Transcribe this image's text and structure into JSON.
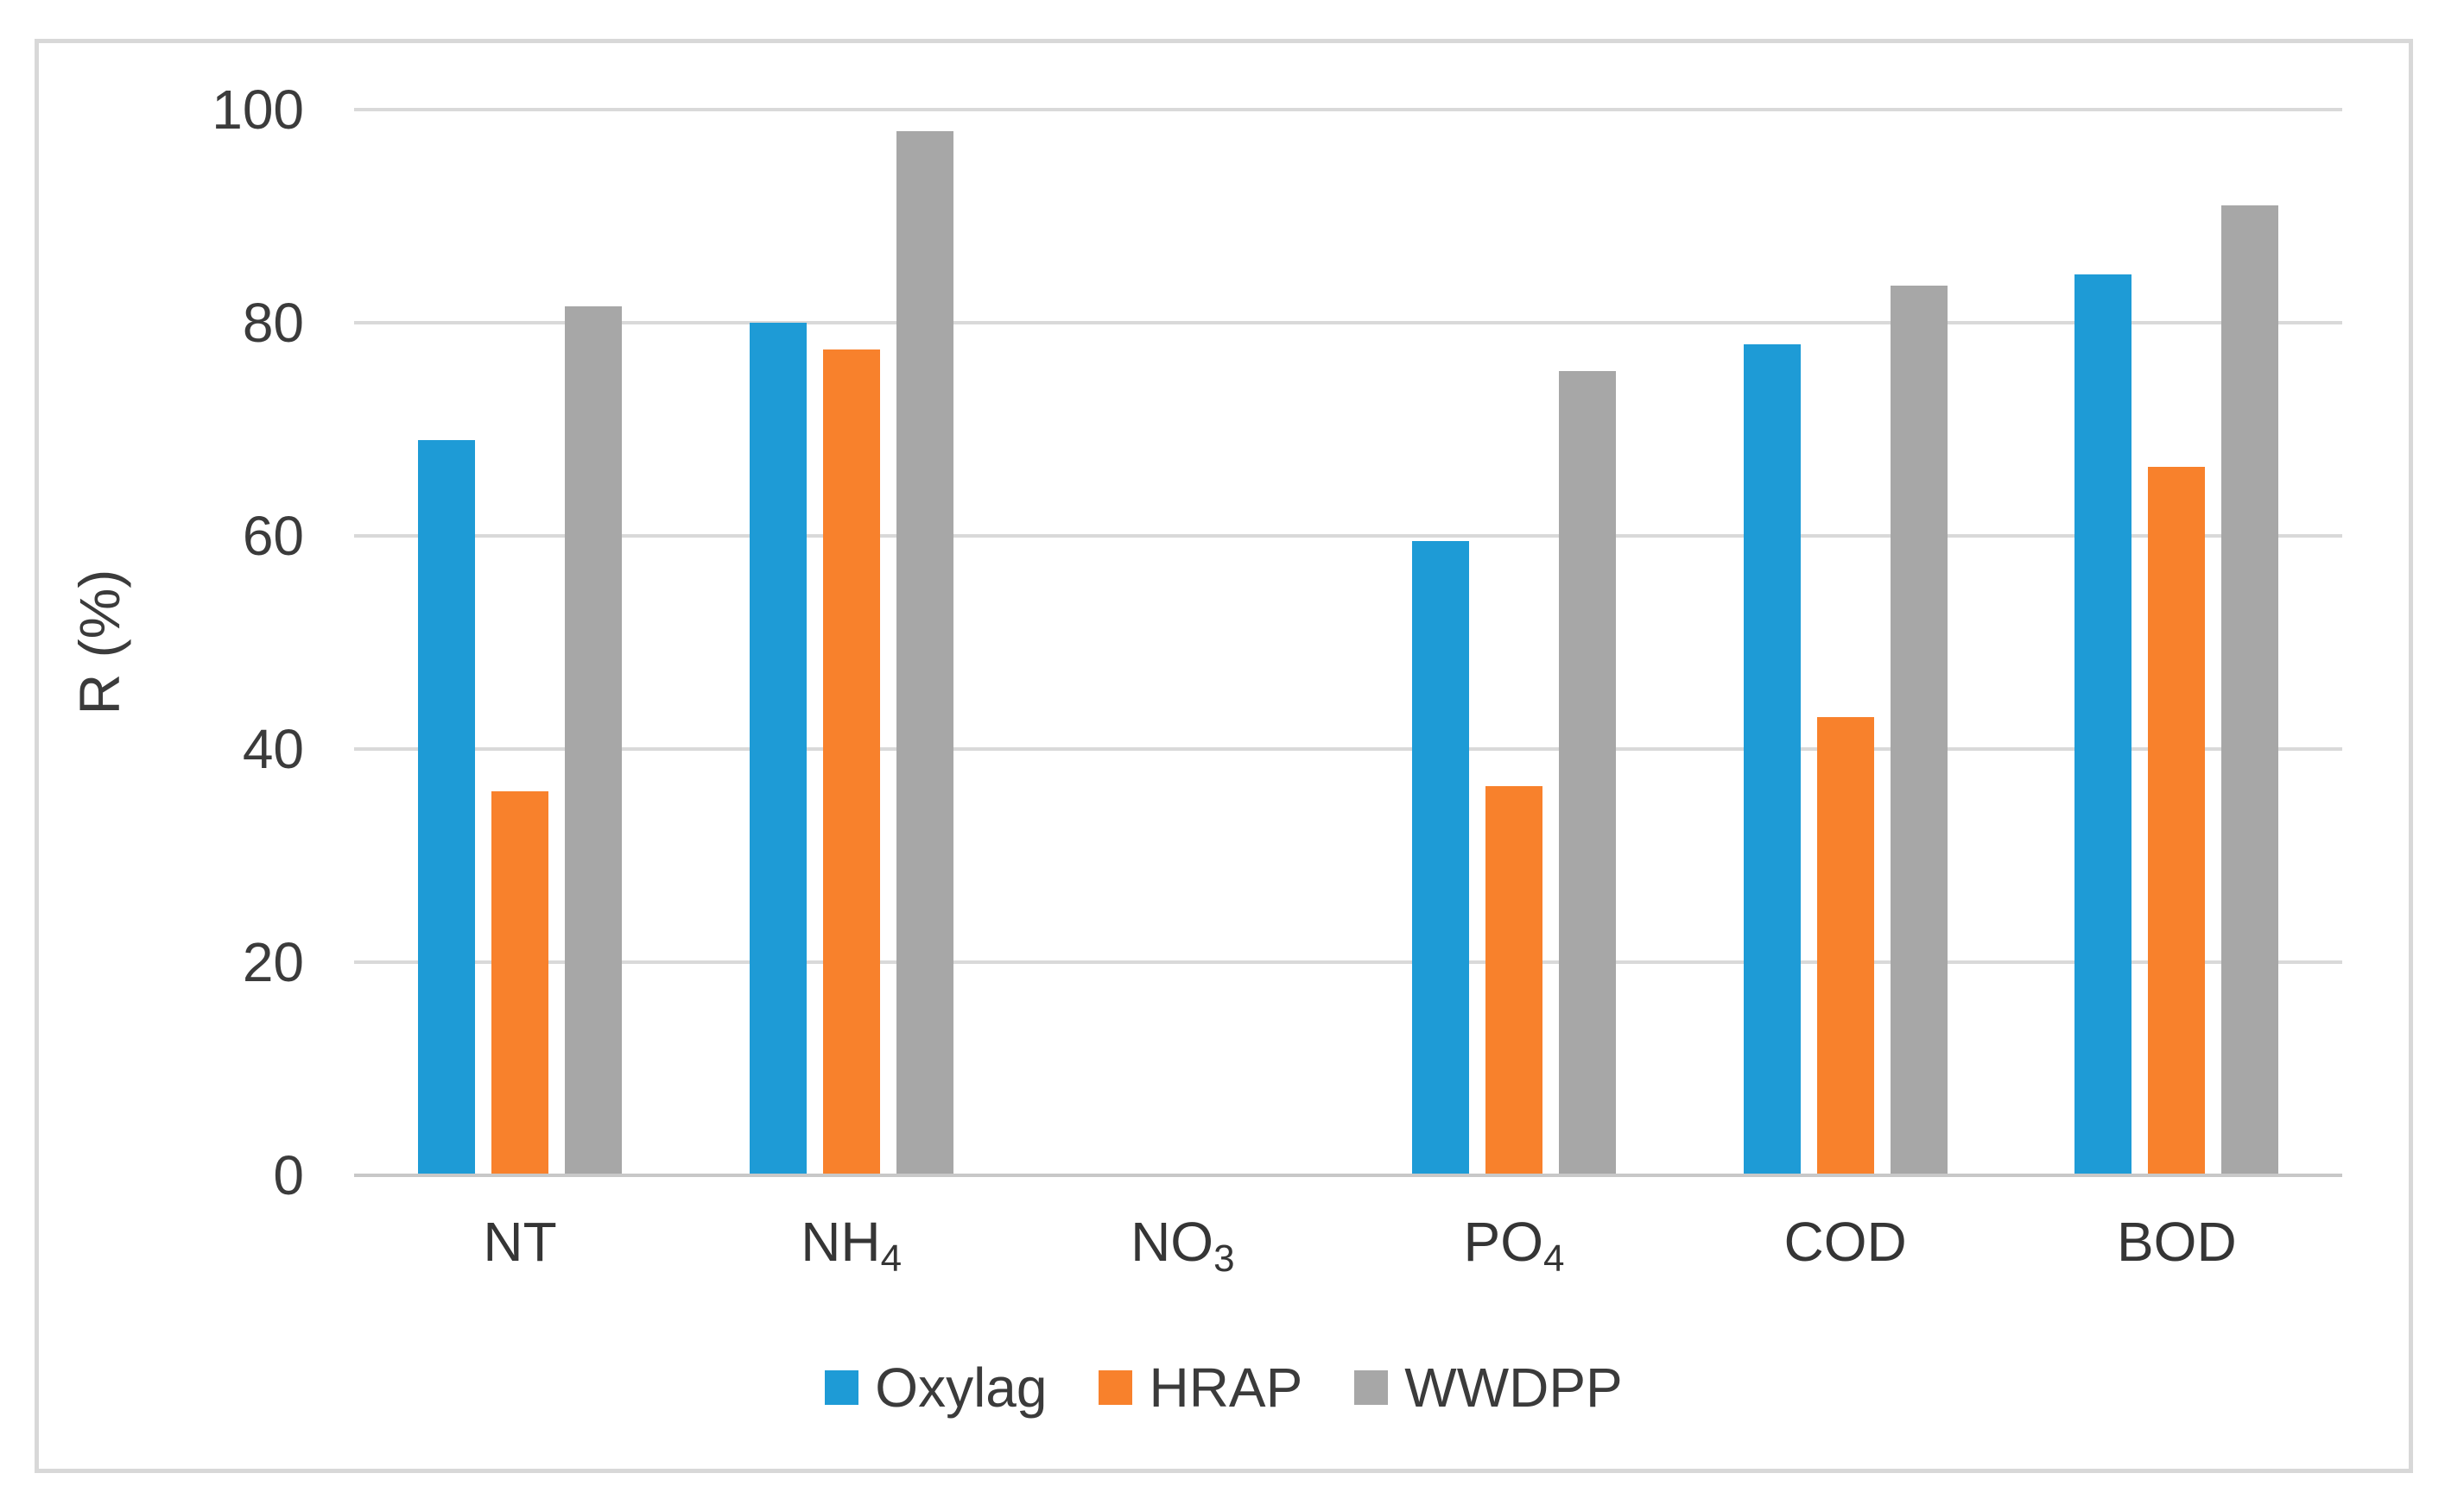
{
  "figure": {
    "background_color": "#ffffff",
    "border_color": "#d8d8d8"
  },
  "chart_data": {
    "type": "bar",
    "title": "",
    "xlabel": "",
    "ylabel": "R (%)",
    "ylim": [
      0,
      100
    ],
    "yticks": [
      "0",
      "20",
      "40",
      "60",
      "80",
      "100"
    ],
    "grid": "horizontal",
    "gridline_color": "#d9d9d9",
    "axis_line_color": "#c8c8c8",
    "text_color": "#3b3b3b",
    "legend_position": "bottom",
    "categories": [
      {
        "main": "NT",
        "sub": ""
      },
      {
        "main": "NH",
        "sub": "4"
      },
      {
        "main": "NO",
        "sub": "3"
      },
      {
        "main": "PO",
        "sub": "4"
      },
      {
        "main": "COD",
        "sub": ""
      },
      {
        "main": "BOD",
        "sub": ""
      }
    ],
    "series": [
      {
        "name": "Oxylag",
        "color": "#1e9bd6",
        "values": [
          69,
          80,
          0,
          59.5,
          78,
          84.5
        ]
      },
      {
        "name": "HRAP",
        "color": "#f8812c",
        "values": [
          36,
          77.5,
          0,
          36.5,
          43,
          66.5
        ]
      },
      {
        "name": "WWDPP",
        "color": "#a7a7a7",
        "values": [
          81.5,
          98,
          0,
          75.5,
          83.5,
          91
        ]
      }
    ]
  }
}
